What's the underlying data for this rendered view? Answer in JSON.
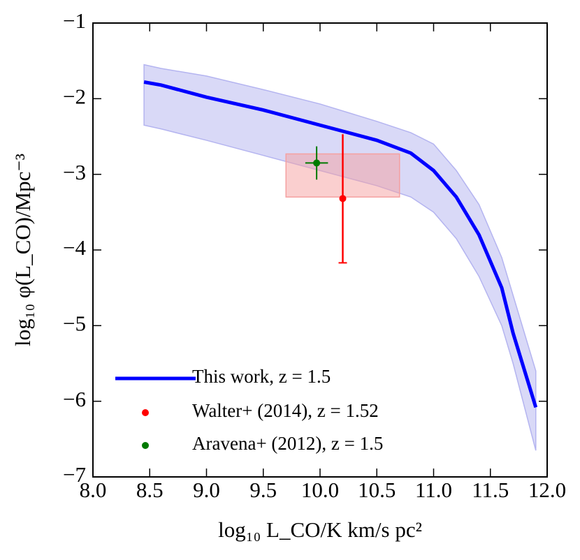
{
  "chart_data": {
    "type": "line",
    "xlabel": "log₁₀ L_CO/K km/s pc²",
    "ylabel": "log₁₀ φ(L_CO)/Mpc⁻³",
    "xlim": [
      8.0,
      12.0
    ],
    "ylim": [
      -7,
      -1
    ],
    "xticks": [
      {
        "value": 8,
        "label": "8.0"
      },
      8.5,
      {
        "value": 9,
        "label": "9.0"
      },
      9.5,
      {
        "value": 10,
        "label": "10.0"
      },
      10.5,
      {
        "value": 11,
        "label": "11.0"
      },
      11.5,
      {
        "value": 12,
        "label": "12.0"
      }
    ],
    "yticks": [
      {
        "value": -7,
        "label": "−7"
      },
      {
        "value": -6,
        "label": "−6"
      },
      {
        "value": -5,
        "label": "−5"
      },
      {
        "value": -4,
        "label": "−4"
      },
      {
        "value": -3,
        "label": "−3"
      },
      {
        "value": -2,
        "label": "−2"
      },
      {
        "value": -1,
        "label": "−1"
      }
    ],
    "legend": "lower left",
    "series": [
      {
        "name": "This work, z = 1.5",
        "color": "#0000ff",
        "band_color": "#b4b4f0",
        "x": [
          8.45,
          8.6,
          9.0,
          9.5,
          10.0,
          10.5,
          10.8,
          11.0,
          11.2,
          11.4,
          11.6,
          11.7,
          11.9
        ],
        "values": [
          -1.78,
          -1.82,
          -1.98,
          -2.15,
          -2.35,
          -2.55,
          -2.72,
          -2.95,
          -3.3,
          -3.8,
          -4.5,
          -5.1,
          -6.08
        ],
        "band_upper": [
          -1.55,
          -1.6,
          -1.7,
          -1.88,
          -2.07,
          -2.3,
          -2.45,
          -2.6,
          -2.95,
          -3.4,
          -4.1,
          -4.6,
          -5.6
        ],
        "band_lower": [
          -2.35,
          -2.4,
          -2.55,
          -2.75,
          -2.95,
          -3.15,
          -3.3,
          -3.5,
          -3.85,
          -4.35,
          -5.0,
          -5.5,
          -6.65
        ]
      },
      {
        "name": "Walter+ (2014), z = 1.52",
        "color": "#ff0000",
        "box_color": "#f5a0a0",
        "x": 10.2,
        "y": -3.32,
        "y_low": -4.17,
        "y_high": -2.47,
        "box_x": [
          9.7,
          10.7
        ],
        "box_y": [
          -3.3,
          -2.73
        ]
      },
      {
        "name": "Aravena+ (2012), z = 1.5",
        "color": "#007a00",
        "x": 9.97,
        "y": -2.85,
        "xerr": 0.1,
        "yerr": 0.22
      }
    ]
  }
}
